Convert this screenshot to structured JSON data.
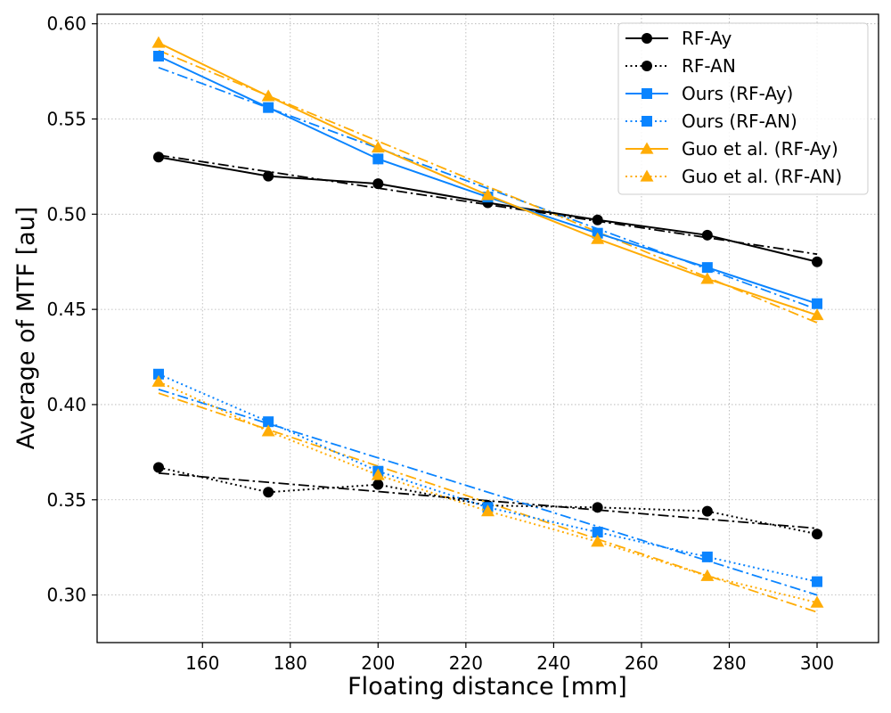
{
  "chart_data": {
    "type": "line",
    "xlabel": "Floating distance [mm]",
    "ylabel": "Average of MTF [au]",
    "xlim": [
      136,
      314
    ],
    "ylim": [
      0.275,
      0.605
    ],
    "x_ticks": [
      160,
      180,
      200,
      220,
      240,
      260,
      280,
      300
    ],
    "y_ticks": [
      0.3,
      0.35,
      0.4,
      0.45,
      0.5,
      0.55,
      0.6
    ],
    "grid": true,
    "legend_position": "top-right",
    "x": [
      150,
      175,
      200,
      225,
      250,
      275,
      300
    ],
    "series": [
      {
        "name": "RF-Ay",
        "color": "#000000",
        "linestyle": "solid",
        "marker": "circle",
        "values": [
          0.53,
          0.52,
          0.516,
          0.506,
          0.497,
          0.489,
          0.475
        ],
        "fit": [
          0.531,
          0.479
        ]
      },
      {
        "name": "RF-AN",
        "color": "#000000",
        "linestyle": "dotted",
        "marker": "circle",
        "values": [
          0.367,
          0.354,
          0.358,
          0.347,
          0.346,
          0.344,
          0.332
        ],
        "fit": [
          0.364,
          0.335
        ]
      },
      {
        "name": "Ours (RF-Ay)",
        "color": "#0a84ff",
        "linestyle": "solid",
        "marker": "square",
        "values": [
          0.583,
          0.556,
          0.529,
          0.509,
          0.49,
          0.472,
          0.453
        ],
        "fit": [
          0.577,
          0.45
        ]
      },
      {
        "name": "Ours (RF-AN)",
        "color": "#0a84ff",
        "linestyle": "dotted",
        "marker": "square",
        "values": [
          0.416,
          0.391,
          0.365,
          0.346,
          0.333,
          0.32,
          0.307
        ],
        "fit": [
          0.408,
          0.3
        ]
      },
      {
        "name": "Guo et al. (RF-Ay)",
        "color": "#ffac05",
        "linestyle": "solid",
        "marker": "triangle",
        "values": [
          0.59,
          0.562,
          0.535,
          0.51,
          0.487,
          0.466,
          0.447
        ],
        "fit": [
          0.586,
          0.443
        ]
      },
      {
        "name": "Guo et al. (RF-AN)",
        "color": "#ffac05",
        "linestyle": "dotted",
        "marker": "triangle",
        "values": [
          0.412,
          0.386,
          0.363,
          0.344,
          0.328,
          0.31,
          0.296
        ],
        "fit": [
          0.406,
          0.291
        ]
      }
    ]
  }
}
